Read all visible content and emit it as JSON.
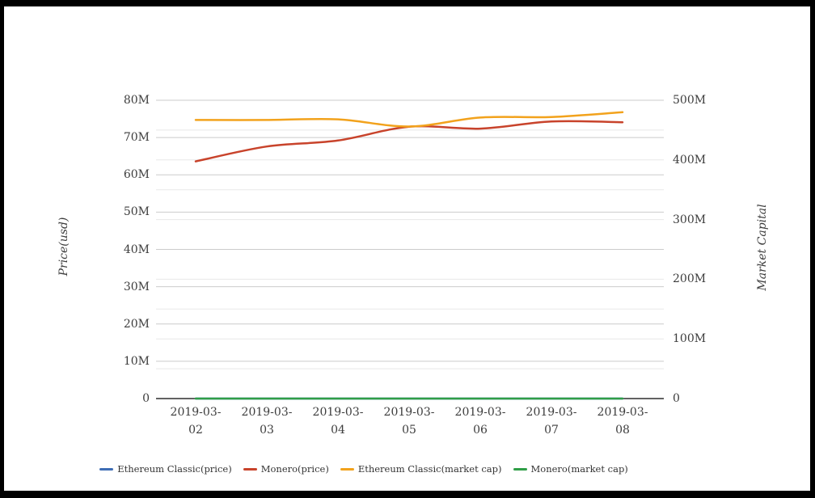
{
  "frame": {
    "border_color": "#000000",
    "background": "#ffffff"
  },
  "text_color": "#3d3d3d",
  "chart_data": {
    "type": "line",
    "title": "",
    "x": [
      "2019-03-02",
      "2019-03-03",
      "2019-03-04",
      "2019-03-05",
      "2019-03-06",
      "2019-03-07",
      "2019-03-08"
    ],
    "series": [
      {
        "name": "Ethereum Classic(price)",
        "axis": "price",
        "color": "#3e6db5",
        "values_millions": [
          0,
          0,
          0,
          0,
          0,
          0,
          0
        ]
      },
      {
        "name": "Monero(price)",
        "axis": "price",
        "color": "#c8432b",
        "values_millions": [
          63.6,
          67.6,
          69.2,
          72.9,
          72.4,
          74.3,
          74.1
        ]
      },
      {
        "name": "Ethereum Classic(market cap)",
        "axis": "market_cap",
        "color": "#f2a21c",
        "values_millions": [
          467,
          467,
          468,
          456,
          471,
          472,
          480
        ]
      },
      {
        "name": "Monero(market cap)",
        "axis": "market_cap",
        "color": "#2f9e47",
        "values_millions": [
          0,
          0,
          0,
          0,
          0,
          0,
          0
        ]
      }
    ],
    "axes": {
      "price": {
        "label": "Price(usd)",
        "min_millions": 0,
        "max_millions": 80,
        "tick_step_millions": 10,
        "tick_labels": [
          "0",
          "10M",
          "20M",
          "30M",
          "40M",
          "50M",
          "60M",
          "70M",
          "80M"
        ]
      },
      "market_cap": {
        "label": "Market Capital",
        "min_millions": 0,
        "max_millions": 500,
        "tick_step_millions": 100,
        "minor_step_millions": 50,
        "tick_labels": [
          "0",
          "100M",
          "200M",
          "300M",
          "400M",
          "500M"
        ]
      }
    },
    "legend": [
      "Ethereum Classic(price)",
      "Monero(price)",
      "Ethereum Classic(market cap)",
      "Monero(market cap)"
    ],
    "grid": {
      "major_line_color": "#cbcbcb",
      "minor_line_color": "#e8e8e8",
      "baseline_color": "#2e2e2e",
      "vertical_gridlines": false,
      "legend_position": "bottom"
    }
  }
}
